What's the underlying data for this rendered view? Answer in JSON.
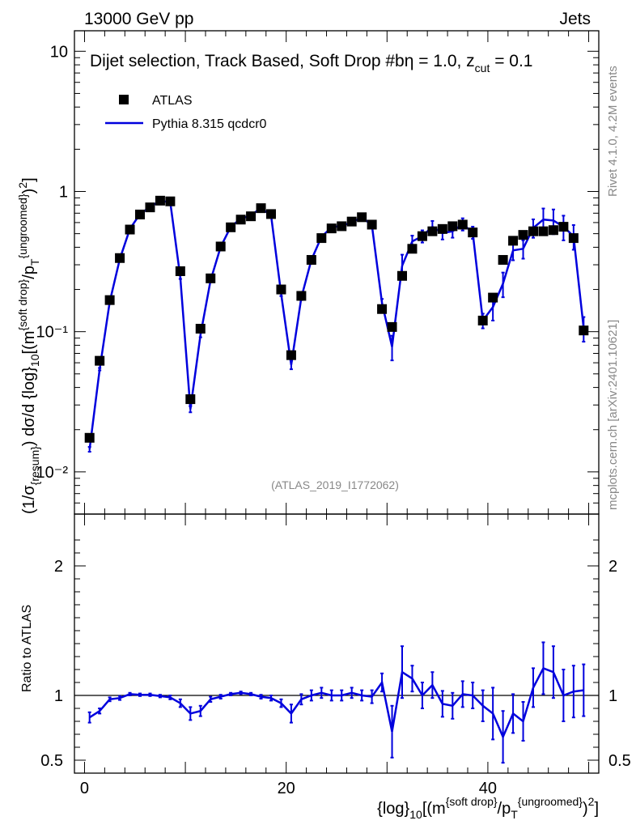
{
  "header": {
    "left": "13000 GeV pp",
    "right": "Jets"
  },
  "side_labels": {
    "rivet": "Rivet 4.1.0,  4.2M events",
    "mcplots": "mcplots.cern.ch [arXiv:2401.10621]"
  },
  "chart_data": [
    {
      "type": "scatter+line",
      "title": "Dijet selection, Track Based, Soft Drop #bη = 1.0, z_cut = 0.1",
      "title_main": "Dijet selection, Track Based, Soft Drop #b",
      "title_eta": "η = 1.0, z",
      "title_sub": "cut",
      "title_tail": " = 0.1",
      "ylabel": "(1/σ_{resum}) dσ/d {log}_10[(m^{soft drop}/p_T^{ungroomed})^2]",
      "xlabel": "{log}_10[(m^{soft drop}/p_T^{ungroomed})^2]",
      "yscale": "log",
      "ylim": [
        0.005,
        14
      ],
      "xlim": [
        -1,
        51
      ],
      "y_ticks": [
        {
          "value": 10,
          "label": "10"
        },
        {
          "value": 1,
          "label": "1"
        },
        {
          "value": 0.1,
          "label": "10⁻¹"
        },
        {
          "value": 0.01,
          "label": "10⁻²"
        }
      ],
      "watermark": "(ATLAS_2019_I1772062)",
      "legend": [
        {
          "name": "ATLAS",
          "marker": "square",
          "color": "#000000"
        },
        {
          "name": "Pythia 8.315 qcdcr0",
          "marker": "line",
          "color": "#0000dd"
        }
      ],
      "series": [
        {
          "name": "ATLAS",
          "x": [
            0.5,
            1.5,
            2.5,
            3.5,
            4.5,
            5.5,
            6.5,
            7.5,
            8.5,
            9.5,
            10.5,
            11.5,
            12.5,
            13.5,
            14.5,
            15.5,
            16.5,
            17.5,
            18.5,
            19.5,
            20.5,
            21.5,
            22.5,
            23.5,
            24.5,
            25.5,
            26.5,
            27.5,
            28.5,
            29.5,
            30.5,
            31.5,
            32.5,
            33.5,
            34.5,
            35.5,
            36.5,
            37.5,
            38.5,
            39.5,
            40.5,
            41.5,
            42.5,
            43.5,
            44.5,
            45.5,
            46.5,
            47.5,
            48.5,
            49.5
          ],
          "values": [
            0.0175,
            0.062,
            0.168,
            0.335,
            0.535,
            0.685,
            0.77,
            0.86,
            0.85,
            0.27,
            0.033,
            0.105,
            0.24,
            0.405,
            0.555,
            0.63,
            0.665,
            0.76,
            0.69,
            0.2,
            0.068,
            0.18,
            0.325,
            0.465,
            0.545,
            0.565,
            0.61,
            0.655,
            0.58,
            0.145,
            0.108,
            0.25,
            0.39,
            0.48,
            0.52,
            0.54,
            0.565,
            0.58,
            0.51,
            0.12,
            0.175,
            0.325,
            0.445,
            0.49,
            0.52,
            0.52,
            0.53,
            0.56,
            0.465,
            0.102
          ]
        },
        {
          "name": "Pythia 8.315 qcdcr0",
          "x": [
            0.5,
            1.5,
            2.5,
            3.5,
            4.5,
            5.5,
            6.5,
            7.5,
            8.5,
            9.5,
            10.5,
            11.5,
            12.5,
            13.5,
            14.5,
            15.5,
            16.5,
            17.5,
            18.5,
            19.5,
            20.5,
            21.5,
            22.5,
            23.5,
            24.5,
            25.5,
            26.5,
            27.5,
            28.5,
            29.5,
            30.5,
            31.5,
            32.5,
            33.5,
            34.5,
            35.5,
            36.5,
            37.5,
            38.5,
            39.5,
            40.5,
            41.5,
            42.5,
            43.5,
            44.5,
            45.5,
            46.5,
            47.5,
            48.5,
            49.5
          ],
          "values": [
            0.0145,
            0.054,
            0.163,
            0.33,
            0.54,
            0.69,
            0.775,
            0.855,
            0.84,
            0.245,
            0.028,
            0.095,
            0.232,
            0.402,
            0.56,
            0.64,
            0.672,
            0.765,
            0.675,
            0.185,
            0.058,
            0.175,
            0.325,
            0.475,
            0.555,
            0.57,
            0.6,
            0.655,
            0.575,
            0.16,
            0.078,
            0.295,
            0.44,
            0.48,
            0.56,
            0.505,
            0.52,
            0.585,
            0.51,
            0.12,
            0.15,
            0.22,
            0.38,
            0.39,
            0.55,
            0.63,
            0.62,
            0.56,
            0.48,
            0.106
          ]
        }
      ]
    },
    {
      "type": "line",
      "ylabel": "Ratio to ATLAS",
      "ylim": [
        0.4,
        2.4
      ],
      "y_ticks": [
        {
          "value": 2,
          "label": "2"
        },
        {
          "value": 1,
          "label": "1"
        },
        {
          "value": 0.5,
          "label": "0.5"
        }
      ],
      "x_ticks": [
        {
          "value": 0,
          "label": "0"
        },
        {
          "value": 20,
          "label": "20"
        },
        {
          "value": 40,
          "label": "40"
        }
      ],
      "reference_line": 1,
      "series": [
        {
          "name": "Pythia 8.315 qcdcr0 / ATLAS",
          "x": [
            0.5,
            1.5,
            2.5,
            3.5,
            4.5,
            5.5,
            6.5,
            7.5,
            8.5,
            9.5,
            10.5,
            11.5,
            12.5,
            13.5,
            14.5,
            15.5,
            16.5,
            17.5,
            18.5,
            19.5,
            20.5,
            21.5,
            22.5,
            23.5,
            24.5,
            25.5,
            26.5,
            27.5,
            28.5,
            29.5,
            30.5,
            31.5,
            32.5,
            33.5,
            34.5,
            35.5,
            36.5,
            37.5,
            38.5,
            39.5,
            40.5,
            41.5,
            42.5,
            43.5,
            44.5,
            45.5,
            46.5,
            47.5,
            48.5,
            49.5
          ],
          "values": [
            0.83,
            0.88,
            0.97,
            0.98,
            1.01,
            1.005,
            1.005,
            0.995,
            0.985,
            0.94,
            0.86,
            0.88,
            0.97,
            0.99,
            1.01,
            1.02,
            1.01,
            0.99,
            0.98,
            0.94,
            0.86,
            0.97,
            1.0,
            1.02,
            1.0,
            1.0,
            1.02,
            1.0,
            0.99,
            1.1,
            0.72,
            1.18,
            1.13,
            1.0,
            1.08,
            0.935,
            0.92,
            1.01,
            1.0,
            0.92,
            0.86,
            0.68,
            0.86,
            0.8,
            1.06,
            1.21,
            1.18,
            1.0,
            1.03,
            1.04
          ],
          "errors": [
            0.04,
            0.02,
            0.015,
            0.015,
            0.01,
            0.01,
            0.01,
            0.01,
            0.015,
            0.03,
            0.05,
            0.04,
            0.02,
            0.015,
            0.01,
            0.01,
            0.01,
            0.015,
            0.02,
            0.03,
            0.07,
            0.04,
            0.04,
            0.04,
            0.04,
            0.04,
            0.04,
            0.04,
            0.05,
            0.07,
            0.2,
            0.2,
            0.1,
            0.1,
            0.1,
            0.1,
            0.1,
            0.1,
            0.1,
            0.12,
            0.2,
            0.2,
            0.15,
            0.15,
            0.15,
            0.2,
            0.2,
            0.2,
            0.2,
            0.2
          ]
        }
      ]
    }
  ]
}
